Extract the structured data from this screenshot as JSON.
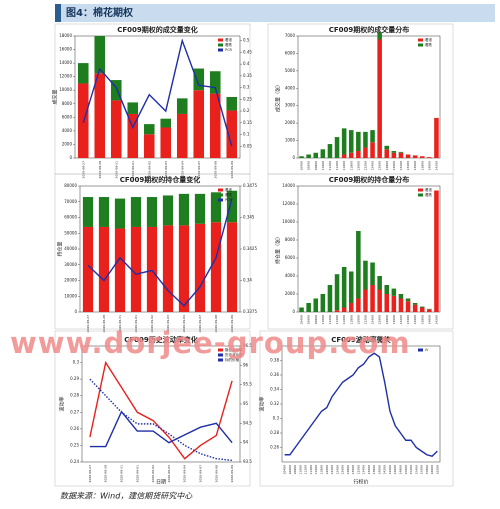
{
  "header": "图4：棉花期权",
  "source": "数据来源：Wind，建信期货研究中心",
  "watermark": "www.dorjee-group.com",
  "chart_data": [
    {
      "type": "bar",
      "title": "CF009期权的成交量变化",
      "ylabel": "成交量",
      "categories": [
        "2020-08-27",
        "2020-08-28",
        "2020-08-31",
        "2020-09-01",
        "2020-09-02",
        "2020-09-03",
        "2020-09-04",
        "2020-09-07",
        "2020-09-08",
        "2020-09-09"
      ],
      "series": [
        {
          "name": "看涨",
          "color": "#e8211d",
          "values": [
            11000,
            12500,
            8500,
            6500,
            3500,
            4500,
            6500,
            10000,
            9500,
            7000
          ]
        },
        {
          "name": "看跌",
          "color": "#1e7d1e",
          "values": [
            3000,
            5500,
            3000,
            1700,
            1500,
            1300,
            2300,
            3200,
            3300,
            2000
          ]
        },
        {
          "name": "PCR",
          "color": "#1f2fa8",
          "axis": "y2",
          "values": [
            0.15,
            0.38,
            0.3,
            0.13,
            0.27,
            0.2,
            0.5,
            0.31,
            0.3,
            0.05
          ]
        }
      ],
      "ylim": [
        0,
        18000
      ],
      "yticks": [
        0,
        2000,
        4000,
        6000,
        8000,
        10000,
        12000,
        14000,
        16000,
        18000
      ],
      "y2lim": [
        0,
        0.52
      ],
      "y2ticks": [
        0.05,
        0.1,
        0.15,
        0.2,
        0.25,
        0.3,
        0.35,
        0.4,
        0.45,
        0.5
      ]
    },
    {
      "type": "bar",
      "title": "CF009期权的成交量分布",
      "ylabel": "成交量（张）",
      "categories": [
        "10400",
        "10600",
        "10800",
        "11000",
        "11200",
        "11400",
        "11600",
        "11800",
        "12000",
        "12200",
        "12400",
        "12600",
        "12800",
        "13000",
        "13200",
        "13400",
        "13600",
        "13800",
        "14000",
        "14200"
      ],
      "series": [
        {
          "name": "看涨",
          "color": "#e8211d",
          "values": [
            0,
            0,
            0,
            0,
            0,
            0,
            200,
            300,
            400,
            600,
            900,
            6800,
            500,
            300,
            300,
            200,
            150,
            100,
            50,
            2300
          ]
        },
        {
          "name": "看跌",
          "color": "#1e7d1e",
          "values": [
            100,
            200,
            300,
            500,
            800,
            1200,
            1500,
            1300,
            1100,
            900,
            700,
            400,
            200,
            100,
            50,
            0,
            0,
            0,
            0,
            0
          ]
        }
      ],
      "ylim": [
        0,
        7000
      ],
      "yticks": [
        0,
        1000,
        2000,
        3000,
        4000,
        5000,
        6000,
        7000
      ]
    },
    {
      "type": "bar",
      "title": "CF009期权的持仓量变化",
      "ylabel": "持仓量",
      "categories": [
        "2020-08-27",
        "2020-08-28",
        "2020-08-31",
        "2020-09-01",
        "2020-09-02",
        "2020-09-03",
        "2020-09-04",
        "2020-09-07",
        "2020-09-08",
        "2020-09-09"
      ],
      "series": [
        {
          "name": "看涨",
          "color": "#e8211d",
          "values": [
            54000,
            54000,
            53000,
            54000,
            54000,
            55000,
            55000,
            56000,
            57000,
            57000
          ]
        },
        {
          "name": "看跌",
          "color": "#1e7d1e",
          "values": [
            19000,
            19000,
            19000,
            19000,
            19000,
            19000,
            20000,
            19000,
            19000,
            20000
          ]
        },
        {
          "name": "PCR",
          "color": "#1f2fa8",
          "axis": "y2",
          "values": [
            0.3412,
            0.34,
            0.3418,
            0.3405,
            0.3408,
            0.3392,
            0.338,
            0.3395,
            0.3418,
            0.3465
          ]
        }
      ],
      "ylim": [
        0,
        80000
      ],
      "yticks": [
        0,
        10000,
        20000,
        30000,
        40000,
        50000,
        60000,
        70000,
        80000
      ],
      "y2lim": [
        0.3375,
        0.3475
      ],
      "y2ticks": [
        0.3375,
        0.34,
        0.3425,
        0.345,
        0.3475
      ]
    },
    {
      "type": "bar",
      "title": "CF009期权的持仓量分布",
      "ylabel": "持仓量（张）",
      "categories": [
        "10400",
        "10600",
        "10800",
        "11000",
        "11200",
        "11400",
        "11600",
        "11800",
        "12000",
        "12200",
        "12400",
        "12600",
        "12800",
        "13000",
        "13200",
        "13400",
        "13600",
        "13800",
        "14000",
        "14200"
      ],
      "series": [
        {
          "name": "看涨",
          "color": "#e8211d",
          "values": [
            0,
            0,
            0,
            0,
            0,
            200,
            500,
            1000,
            1500,
            2500,
            3000,
            2500,
            2000,
            1800,
            1500,
            1200,
            800,
            500,
            300,
            13500
          ]
        },
        {
          "name": "看跌",
          "color": "#1e7d1e",
          "values": [
            500,
            1000,
            1500,
            2000,
            3000,
            4000,
            4500,
            3500,
            7500,
            3200,
            2500,
            1500,
            1000,
            800,
            500,
            300,
            200,
            100,
            50,
            0
          ]
        }
      ],
      "ylim": [
        0,
        14000
      ],
      "yticks": [
        0,
        2000,
        4000,
        6000,
        8000,
        10000,
        12000,
        14000
      ]
    },
    {
      "type": "line",
      "title": "CF009历史波动率变化",
      "ylabel": "波动率",
      "xlabel": "日期",
      "categories": [
        "2020-08-27",
        "2020-08-28",
        "2020-08-31",
        "2020-09-01",
        "2020-09-02",
        "2020-09-03",
        "2020-09-04",
        "2020-09-07",
        "2020-09-08",
        "2020-09-09"
      ],
      "series": [
        {
          "name": "隐含波动率",
          "color": "#e8211d",
          "values": [
            0.255,
            0.3,
            0.285,
            0.27,
            0.265,
            0.255,
            0.242,
            0.25,
            0.256,
            0.289
          ]
        },
        {
          "name": "历史波动率",
          "color": "#1f2fa8",
          "dash": true,
          "values": [
            0.29,
            0.28,
            0.27,
            0.263,
            0.263,
            0.257,
            0.25,
            0.245,
            0.242,
            0.241
          ]
        },
        {
          "name": "标的价格",
          "color": "#1f2fa8",
          "axis": "y2",
          "values": [
            93.9,
            93.9,
            94.8,
            94.3,
            94.3,
            94,
            94.2,
            94.4,
            94.5,
            94
          ]
        }
      ],
      "ylim": [
        0.24,
        0.31
      ],
      "yticks": [
        0.24,
        0.25,
        0.26,
        0.27,
        0.28,
        0.29,
        0.3
      ],
      "y2lim": [
        93.5,
        96.5
      ],
      "y2ticks": [
        93.5,
        94,
        94.5,
        95,
        95.5,
        96,
        96.5
      ]
    },
    {
      "type": "line",
      "title": "CF009波动率微笑",
      "ylabel": "波动率",
      "xlabel": "行权价",
      "categories": [
        "10400",
        "10600",
        "10800",
        "11000",
        "11200",
        "11400",
        "11600",
        "11800",
        "12000",
        "12200",
        "12400",
        "12600",
        "12800",
        "13000",
        "13200",
        "13400",
        "13600",
        "13800",
        "14000",
        "14200",
        "14400",
        "14600",
        "14800",
        "15000",
        "15200",
        "15400",
        "15600",
        "15800",
        "16000",
        "16200"
      ],
      "series": [
        {
          "name": "IV",
          "color": "#1f2fa8",
          "values": [
            0.25,
            0.25,
            0.26,
            0.27,
            0.28,
            0.29,
            0.3,
            0.31,
            0.315,
            0.33,
            0.34,
            0.35,
            0.355,
            0.36,
            0.37,
            0.375,
            0.385,
            0.39,
            0.385,
            0.35,
            0.31,
            0.29,
            0.28,
            0.27,
            0.27,
            0.26,
            0.255,
            0.25,
            0.248,
            0.255
          ]
        }
      ],
      "ylim": [
        0.24,
        0.4
      ],
      "yticks": [
        0.26,
        0.28,
        0.3,
        0.32,
        0.34,
        0.36,
        0.38
      ]
    }
  ]
}
